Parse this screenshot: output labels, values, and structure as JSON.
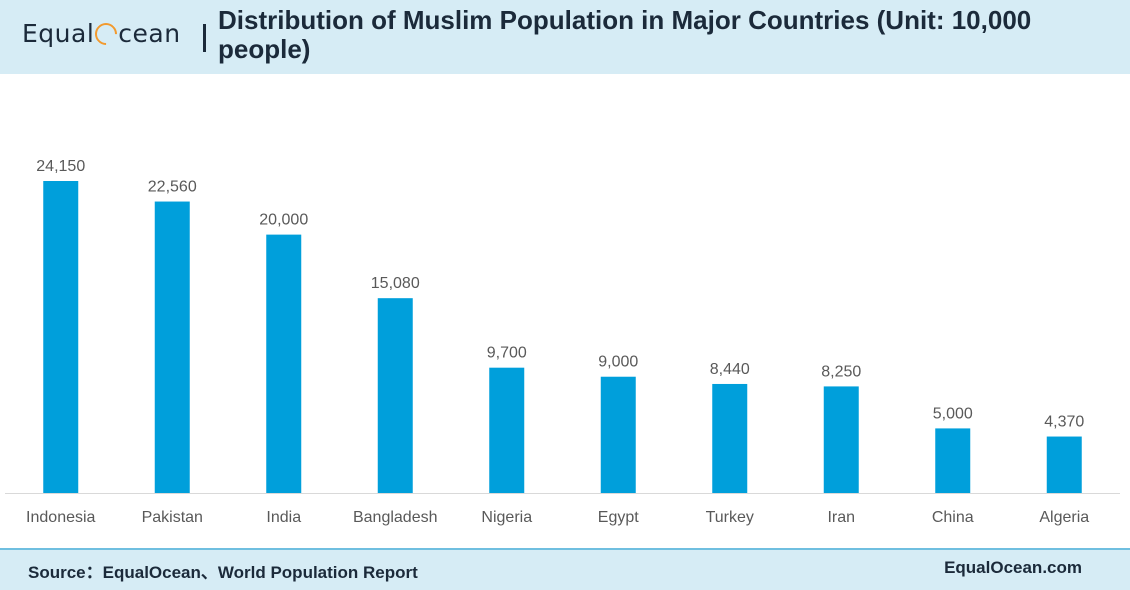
{
  "header": {
    "logo_text_pre": "Equal",
    "logo_text_post": "cean",
    "title": "Distribution of Muslim Population in Major Countries (Unit: 10,000 people)"
  },
  "chart_data": {
    "type": "bar",
    "title": "Distribution of Muslim Population in Major Countries (Unit: 10,000 people)",
    "categories": [
      "Indonesia",
      "Pakistan",
      "India",
      "Bangladesh",
      "Nigeria",
      "Egypt",
      "Turkey",
      "Iran",
      "China",
      "Algeria"
    ],
    "values": [
      24150,
      22560,
      20000,
      15080,
      9700,
      9000,
      8440,
      8250,
      5000,
      4370
    ],
    "value_labels": [
      "24,150",
      "22,560",
      "20,000",
      "15,080",
      "9,700",
      "9,000",
      "8,440",
      "8,250",
      "5,000",
      "4,370"
    ],
    "ylim": [
      0,
      24150
    ],
    "grid": false,
    "legend": "none",
    "bar_color": "#009fdb"
  },
  "footer": {
    "source": "Source：EqualOcean、World Population Report",
    "site": "EqualOcean.com"
  }
}
